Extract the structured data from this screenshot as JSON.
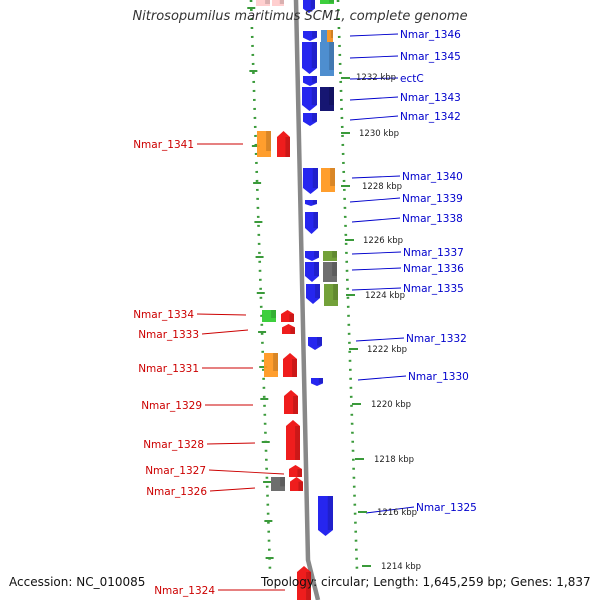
{
  "title": "Nitrosopumilus maritimus SCM1, complete genome",
  "footer": {
    "accession": "Accession: NC_010085",
    "topology": "Topology: circular; Length: 1,645,259 bp; Genes: 1,837"
  },
  "ticks": [
    {
      "label": "1232 kbp"
    },
    {
      "label": "1230 kbp"
    },
    {
      "label": "1228 kbp"
    },
    {
      "label": "1226 kbp"
    },
    {
      "label": "1224 kbp"
    },
    {
      "label": "1222 kbp"
    },
    {
      "label": "1220 kbp"
    },
    {
      "label": "1218 kbp"
    },
    {
      "label": "1216 kbp"
    },
    {
      "label": "1214 kbp"
    }
  ],
  "colors": {
    "forward_label": "#0000cc",
    "reverse_label": "#cc0000",
    "blue": "#1a1aee",
    "red": "#ee1111",
    "orange": "#ff9922",
    "steelblue": "#4488cc",
    "navy": "#0a0a6a",
    "olive": "#6b9c2e",
    "gray": "#666666",
    "green": "#33cc33"
  },
  "genes_forward": [
    {
      "name": "Nmar_1346"
    },
    {
      "name": "Nmar_1345"
    },
    {
      "name": "ectC"
    },
    {
      "name": "Nmar_1343"
    },
    {
      "name": "Nmar_1342"
    },
    {
      "name": "Nmar_1340"
    },
    {
      "name": "Nmar_1339"
    },
    {
      "name": "Nmar_1338"
    },
    {
      "name": "Nmar_1337"
    },
    {
      "name": "Nmar_1336"
    },
    {
      "name": "Nmar_1335"
    },
    {
      "name": "Nmar_1332"
    },
    {
      "name": "Nmar_1330"
    },
    {
      "name": "Nmar_1325"
    }
  ],
  "genes_reverse": [
    {
      "name": "Nmar_1341"
    },
    {
      "name": "Nmar_1334"
    },
    {
      "name": "Nmar_1333"
    },
    {
      "name": "Nmar_1331"
    },
    {
      "name": "Nmar_1329"
    },
    {
      "name": "Nmar_1328"
    },
    {
      "name": "Nmar_1327"
    },
    {
      "name": "Nmar_1326"
    },
    {
      "name": "Nmar_1324"
    }
  ]
}
